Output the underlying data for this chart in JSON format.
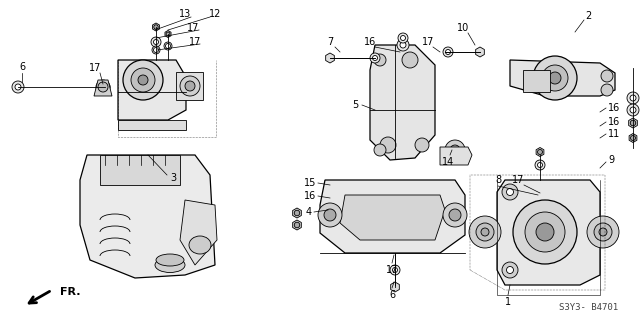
{
  "bg_color": "#ffffff",
  "line_color": "#000000",
  "fig_width": 6.4,
  "fig_height": 3.19,
  "dpi": 100,
  "watermark": "S3Y3- B4701",
  "fr_label": "FR."
}
